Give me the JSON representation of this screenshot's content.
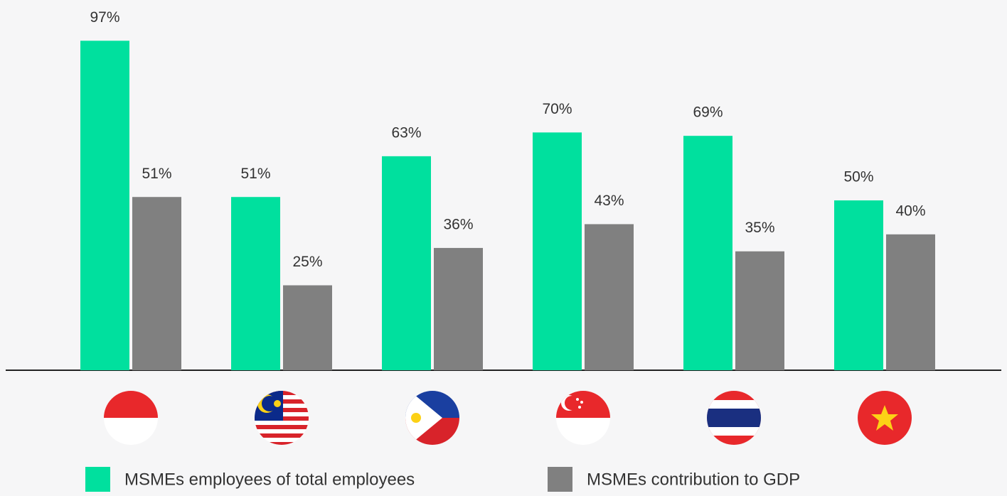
{
  "chart_data": {
    "type": "bar",
    "categories": [
      null,
      null,
      null,
      null,
      null,
      null
    ],
    "series": [
      {
        "name": "MSMEs employees of total employees",
        "color": "#00e09e",
        "values": [
          97,
          51,
          63,
          70,
          69,
          50
        ],
        "value_labels": [
          "97%",
          "51%",
          "63%",
          "70%",
          "69%",
          "50%"
        ]
      },
      {
        "name": "MSMEs contribution to GDP",
        "color": "#808080",
        "values": [
          51,
          25,
          36,
          43,
          35,
          40
        ],
        "value_labels": [
          "51%",
          "25%",
          "36%",
          "43%",
          "35%",
          "40%"
        ]
      }
    ]
  }
}
